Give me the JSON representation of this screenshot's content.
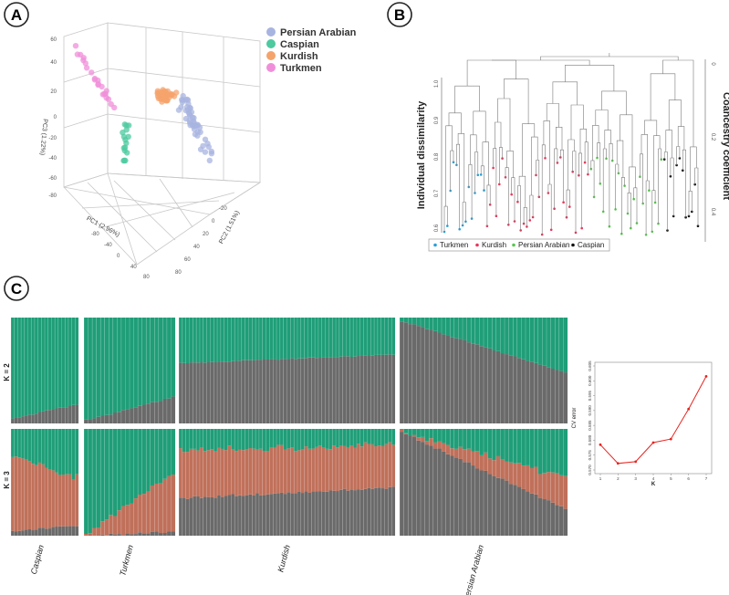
{
  "panels": {
    "a": {
      "letter": "A"
    },
    "b": {
      "letter": "B"
    },
    "c": {
      "letter": "C"
    }
  },
  "colors": {
    "persian_arabian": "#a8b4e0",
    "caspian": "#4ec9a0",
    "kurdish": "#f5a36c",
    "turkmen": "#f08fd9",
    "green": "#1f9e78",
    "gray": "#6a6a6a",
    "orange": "#c0705a",
    "cv_line": "#e8231f"
  },
  "chart_data": [
    {
      "type": "scatter",
      "title": "",
      "xlabel": "PC1 (2.96%)",
      "ylabel": "PC2 (1.51%)",
      "zlabel": "PC3 (1.22%)",
      "legend": {
        "placement": "top-right",
        "entries": [
          "Persian Arabian",
          "Caspian",
          "Kurdish",
          "Turkmen"
        ]
      },
      "z_ticks": [
        "60",
        "40",
        "20",
        "0",
        "-20",
        "-40",
        "-60",
        "-80"
      ],
      "x_ticks": [
        "-80",
        "-40",
        "0",
        "40",
        "80"
      ],
      "y_ticks": [
        "-20",
        "0",
        "20",
        "40",
        "60",
        "80"
      ],
      "series": [
        {
          "name": "Persian Arabian",
          "centroid": [
            30,
            10,
            -5
          ]
        },
        {
          "name": "Caspian",
          "centroid": [
            -35,
            -20,
            -20
          ]
        },
        {
          "name": "Kurdish",
          "centroid": [
            5,
            5,
            10
          ]
        },
        {
          "name": "Turkmen",
          "centroid": [
            -60,
            -40,
            30
          ]
        }
      ]
    },
    {
      "type": "dendrogram",
      "ylabel": "Individual dissimilarity",
      "y2label": "Coancestry coefficient",
      "y_ticks": [
        "1.0",
        "0.9",
        "0.8",
        "0.7",
        "0.6"
      ],
      "y2_ticks": [
        "0",
        "0.2",
        "0.4"
      ],
      "legend": {
        "placement": "bottom",
        "entries": [
          "Turkmen",
          "Kurdish",
          "Persian Arabian",
          "Caspian"
        ]
      },
      "leaf_groups": [
        {
          "name": "Turkmen",
          "color": "#2a9fd8",
          "count": 14
        },
        {
          "name": "Kurdish",
          "color": "#e8365a",
          "count": 34
        },
        {
          "name": "Persian Arabian",
          "color": "#57c84d",
          "count": 24
        },
        {
          "name": "Caspian",
          "color": "#111111",
          "count": 12
        }
      ]
    },
    {
      "type": "bar",
      "subtype": "stacked-admixture",
      "rows": [
        "K = 2",
        "K = 3"
      ],
      "groups": [
        {
          "name": "Caspian",
          "n": 20
        },
        {
          "name": "Turkmen",
          "n": 22
        },
        {
          "name": "Kurdish",
          "n": 62
        },
        {
          "name": "Persian Arabian",
          "n": 40
        }
      ],
      "k2_gray_range": [
        [
          0.05,
          0.18
        ],
        [
          0.03,
          0.25
        ],
        [
          0.57,
          0.65
        ],
        [
          0.97,
          0.48
        ]
      ],
      "k3_gray_range": [
        [
          0.04,
          0.1
        ],
        [
          0.0,
          0.04
        ],
        [
          0.35,
          0.45
        ],
        [
          0.97,
          0.25
        ]
      ],
      "k3_orange_range": [
        [
          0.7,
          0.45
        ],
        [
          0.02,
          0.55
        ],
        [
          0.45,
          0.4
        ],
        [
          0.0,
          0.3
        ]
      ]
    },
    {
      "type": "line",
      "xlabel": "K",
      "ylabel": "CV error",
      "x": [
        1,
        2,
        3,
        4,
        5,
        6,
        7
      ],
      "y": [
        0.5785,
        0.5722,
        0.5728,
        0.5792,
        0.5804,
        0.5905,
        0.6015
      ],
      "ylim": [
        0.57,
        0.605
      ],
      "x_ticks": [
        "1",
        "2",
        "3",
        "4",
        "5",
        "6",
        "7"
      ],
      "y_ticks": [
        "0.570",
        "0.575",
        "0.580",
        "0.585",
        "0.590",
        "0.595",
        "0.600",
        "0.605"
      ]
    }
  ]
}
